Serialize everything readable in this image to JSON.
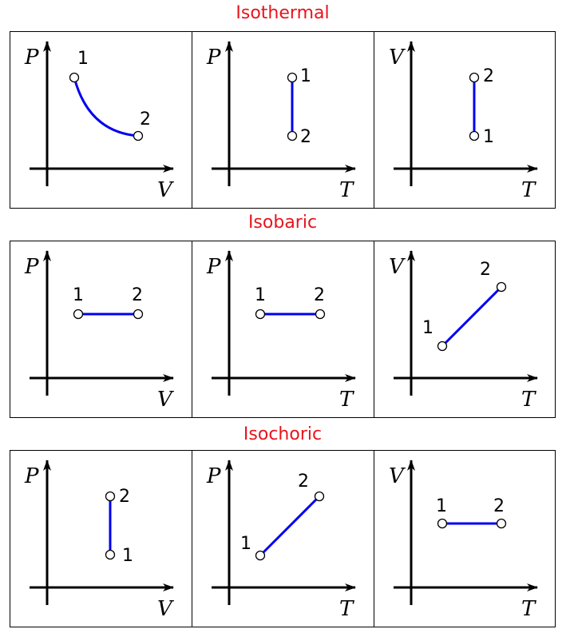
{
  "sections": [
    {
      "title": "Isothermal",
      "panels": [
        {
          "y_axis": "P",
          "x_axis": "V",
          "label_1": "1",
          "label_2": "2"
        },
        {
          "y_axis": "P",
          "x_axis": "T",
          "label_1": "1",
          "label_2": "2"
        },
        {
          "y_axis": "V",
          "x_axis": "T",
          "label_1": "1",
          "label_2": "2"
        }
      ]
    },
    {
      "title": "Isobaric",
      "panels": [
        {
          "y_axis": "P",
          "x_axis": "V",
          "label_1": "1",
          "label_2": "2"
        },
        {
          "y_axis": "P",
          "x_axis": "T",
          "label_1": "1",
          "label_2": "2"
        },
        {
          "y_axis": "V",
          "x_axis": "T",
          "label_1": "1",
          "label_2": "2"
        }
      ]
    },
    {
      "title": "Isochoric",
      "panels": [
        {
          "y_axis": "P",
          "x_axis": "V",
          "label_1": "1",
          "label_2": "2"
        },
        {
          "y_axis": "P",
          "x_axis": "T",
          "label_1": "1",
          "label_2": "2"
        },
        {
          "y_axis": "V",
          "x_axis": "T",
          "label_1": "1",
          "label_2": "2"
        }
      ]
    }
  ],
  "colors": {
    "title": "#e8141c",
    "curve": "#0000ee",
    "axis": "#000000"
  }
}
